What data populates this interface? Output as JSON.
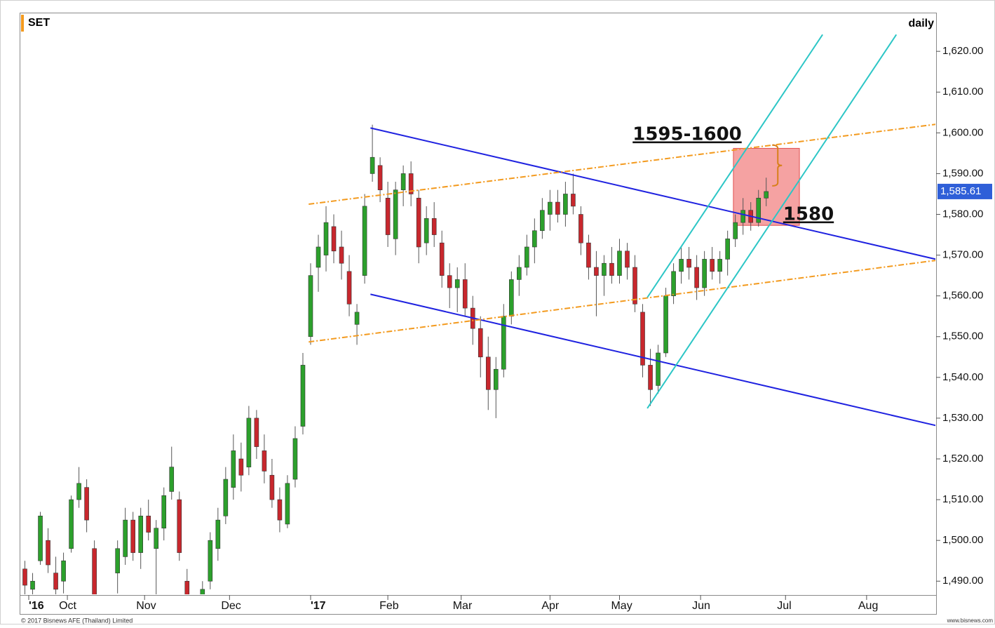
{
  "chart_data": {
    "type": "candlestick",
    "title": "SET",
    "subtitle": "daily",
    "footer_left": "© 2017 Bisnews AFE (Thailand) Limited",
    "footer_right": "www.bisnews.com",
    "annotations": [
      "1595-1600",
      "1580"
    ],
    "up_color": "#2ca02c",
    "down_color": "#c8272d",
    "xlim": [
      0,
      237
    ],
    "xticks": [
      {
        "value": 2,
        "label": "'16"
      },
      {
        "value": 12,
        "label": "Oct"
      },
      {
        "value": 32,
        "label": "Nov"
      },
      {
        "value": 54,
        "label": "Dec"
      },
      {
        "value": 75,
        "label": "'17"
      },
      {
        "value": 95,
        "label": "Feb"
      },
      {
        "value": 114,
        "label": "Mar"
      },
      {
        "value": 137,
        "label": "Apr"
      },
      {
        "value": 155,
        "label": "May"
      },
      {
        "value": 176,
        "label": "Jun"
      },
      {
        "value": 198,
        "label": "Jul"
      },
      {
        "value": 219,
        "label": "Aug"
      }
    ],
    "ylim": [
      1486.6,
      1629.5
    ],
    "yticks": [
      {
        "value": 1490,
        "label": "1,490.00"
      },
      {
        "value": 1500,
        "label": "1,500.00"
      },
      {
        "value": 1510,
        "label": "1,510.00"
      },
      {
        "value": 1520,
        "label": "1,520.00"
      },
      {
        "value": 1530,
        "label": "1,530.00"
      },
      {
        "value": 1540,
        "label": "1,540.00"
      },
      {
        "value": 1550,
        "label": "1,550.00"
      },
      {
        "value": 1560,
        "label": "1,560.00"
      },
      {
        "value": 1570,
        "label": "1,570.00"
      },
      {
        "value": 1580,
        "label": "1,580.00"
      },
      {
        "value": 1590,
        "label": "1,590.00"
      },
      {
        "value": 1600,
        "label": "1,600.00"
      },
      {
        "value": 1610,
        "label": "1,610.00"
      },
      {
        "value": 1620,
        "label": "1,620.00"
      }
    ],
    "last_price_label": "1,585.61",
    "x": [
      1,
      3,
      5,
      7,
      9,
      11,
      13,
      15,
      17,
      19,
      21,
      23,
      25,
      27,
      29,
      31,
      33,
      35,
      37,
      39,
      41,
      43,
      45,
      47,
      49,
      51,
      53,
      55,
      57,
      59,
      61,
      63,
      65,
      67,
      69,
      71,
      73,
      75,
      77,
      79,
      81,
      83,
      85,
      87,
      89,
      91,
      93,
      95,
      97,
      99,
      101,
      103,
      105,
      107,
      109,
      111,
      113,
      115,
      117,
      119,
      121,
      123,
      125,
      127,
      129,
      131,
      133,
      135,
      137,
      139,
      141,
      143,
      145,
      147,
      149,
      151,
      153,
      155,
      157,
      159,
      161,
      163,
      165,
      167,
      169,
      171,
      173,
      175,
      177,
      179,
      181,
      183,
      185,
      187,
      189,
      191,
      193
    ],
    "open": [
      1493,
      1488,
      1495,
      1500,
      1492,
      1490,
      1498,
      1510,
      1513,
      1498,
      1484,
      1480,
      1492,
      1496,
      1505,
      1497,
      1506,
      1498,
      1503,
      1512,
      1510,
      1490,
      1482,
      1481,
      1490,
      1498,
      1506,
      1513,
      1520,
      1518,
      1530,
      1522,
      1516,
      1510,
      1504,
      1515,
      1528,
      1550,
      1567,
      1570,
      1577,
      1572,
      1566,
      1553,
      1565,
      1590,
      1592,
      1584,
      1574,
      1586,
      1590,
      1584,
      1573,
      1579,
      1573,
      1565,
      1562,
      1564,
      1557,
      1552,
      1545,
      1537,
      1542,
      1555,
      1564,
      1567,
      1572,
      1576,
      1580,
      1583,
      1580,
      1585,
      1580,
      1573,
      1567,
      1565,
      1568,
      1565,
      1571,
      1567,
      1556,
      1543,
      1538,
      1546,
      1560,
      1566,
      1569,
      1567,
      1562,
      1569,
      1566,
      1569,
      1574,
      1578,
      1581,
      1578,
      1584
    ],
    "high": [
      1495,
      1492,
      1507,
      1503,
      1496,
      1497,
      1511,
      1518,
      1515,
      1500,
      1486,
      1485,
      1500,
      1508,
      1507,
      1508,
      1510,
      1505,
      1513,
      1523,
      1512,
      1493,
      1486,
      1490,
      1502,
      1508,
      1518,
      1526,
      1524,
      1533,
      1532,
      1526,
      1520,
      1513,
      1516,
      1528,
      1546,
      1568,
      1575,
      1582,
      1580,
      1576,
      1570,
      1558,
      1585,
      1602,
      1594,
      1588,
      1588,
      1592,
      1593,
      1586,
      1582,
      1583,
      1576,
      1568,
      1567,
      1568,
      1560,
      1555,
      1550,
      1545,
      1558,
      1566,
      1570,
      1575,
      1579,
      1584,
      1586,
      1586,
      1588,
      1590,
      1582,
      1575,
      1571,
      1570,
      1572,
      1574,
      1573,
      1570,
      1558,
      1547,
      1548,
      1562,
      1568,
      1572,
      1572,
      1570,
      1571,
      1572,
      1571,
      1576,
      1580,
      1584,
      1583,
      1586,
      1589
    ],
    "low": [
      1486,
      1484,
      1494,
      1492,
      1485,
      1487,
      1497,
      1508,
      1502,
      1482,
      1478,
      1476,
      1487,
      1494,
      1495,
      1493,
      1500,
      1485,
      1500,
      1510,
      1495,
      1480,
      1476,
      1478,
      1488,
      1495,
      1504,
      1510,
      1512,
      1516,
      1520,
      1514,
      1508,
      1502,
      1503,
      1513,
      1526,
      1548,
      1561,
      1566,
      1568,
      1564,
      1555,
      1548,
      1563,
      1588,
      1583,
      1572,
      1570,
      1582,
      1582,
      1568,
      1570,
      1572,
      1562,
      1557,
      1556,
      1555,
      1548,
      1540,
      1532,
      1530,
      1540,
      1553,
      1560,
      1565,
      1568,
      1574,
      1576,
      1578,
      1577,
      1580,
      1570,
      1564,
      1555,
      1560,
      1563,
      1563,
      1564,
      1556,
      1540,
      1533,
      1536,
      1545,
      1558,
      1563,
      1564,
      1559,
      1560,
      1564,
      1563,
      1565,
      1572,
      1575,
      1576,
      1577,
      1582
    ],
    "close": [
      1489,
      1490,
      1506,
      1494,
      1488,
      1495,
      1510,
      1514,
      1505,
      1484,
      1480,
      1483,
      1498,
      1505,
      1497,
      1506,
      1502,
      1503,
      1511,
      1518,
      1497,
      1483,
      1480,
      1488,
      1500,
      1505,
      1515,
      1522,
      1516,
      1530,
      1523,
      1517,
      1510,
      1505,
      1514,
      1525,
      1543,
      1565,
      1572,
      1578,
      1571,
      1568,
      1558,
      1556,
      1582,
      1594,
      1586,
      1575,
      1586,
      1590,
      1585,
      1572,
      1579,
      1575,
      1565,
      1562,
      1564,
      1557,
      1552,
      1545,
      1537,
      1542,
      1555,
      1564,
      1567,
      1572,
      1576,
      1581,
      1583,
      1580,
      1585,
      1582,
      1573,
      1567,
      1565,
      1568,
      1565,
      1571,
      1567,
      1558,
      1543,
      1537,
      1546,
      1560,
      1566,
      1569,
      1567,
      1562,
      1569,
      1566,
      1569,
      1574,
      1578,
      1581,
      1578,
      1584,
      1585.61
    ],
    "lines": [
      {
        "color": "#1f22e0",
        "style": "solid",
        "x": [
          90.5,
          236.9
        ],
        "y": [
          1601.2,
          1569.0
        ]
      },
      {
        "color": "#1f22e0",
        "style": "solid",
        "x": [
          90.5,
          236.9
        ],
        "y": [
          1560.4,
          1528.2
        ]
      },
      {
        "color": "#f39a1e",
        "style": "dashdot",
        "x": [
          74.5,
          236.9
        ],
        "y": [
          1582.5,
          1602.1
        ]
      },
      {
        "color": "#f39a1e",
        "style": "dashdot",
        "x": [
          74.5,
          236.9
        ],
        "y": [
          1548.7,
          1568.7
        ]
      },
      {
        "color": "#2cc6c6",
        "style": "solid",
        "x": [
          162.2,
          207.6
        ],
        "y": [
          1559.6,
          1624.1
        ]
      },
      {
        "color": "#2cc6c6",
        "style": "solid",
        "x": [
          162.2,
          226.7
        ],
        "y": [
          1532.4,
          1624.1
        ]
      }
    ],
    "zone": {
      "color": "#f07070",
      "x": [
        184.5,
        201.6
      ],
      "y": [
        1596.2,
        1577.3
      ]
    },
    "brace": {
      "color": "#d8801a",
      "x": 196,
      "y": [
        1597,
        1587
      ]
    }
  }
}
